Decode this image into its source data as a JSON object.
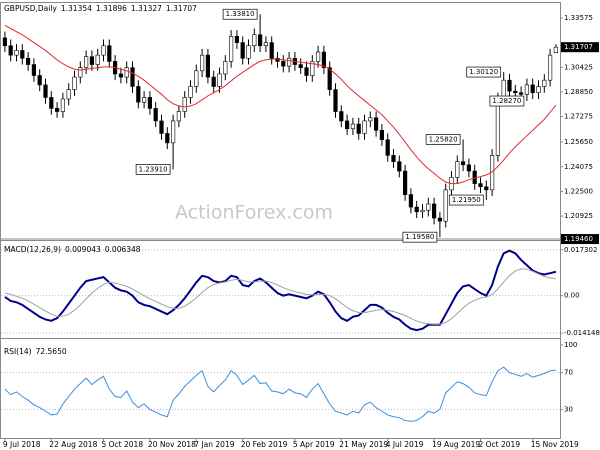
{
  "chart_data": [
    {
      "type": "candlestick",
      "title": "GBPUSD,Daily",
      "watermark": "ActionForex.com",
      "color": "#000000",
      "open": [
        1.323,
        1.318,
        1.312,
        1.315,
        1.31,
        1.306,
        1.299,
        1.293,
        1.285,
        1.278,
        1.276,
        1.284,
        1.29,
        1.298,
        1.304,
        1.311,
        1.306,
        1.312,
        1.318,
        1.308,
        1.3,
        1.298,
        1.304,
        1.292,
        1.282,
        1.285,
        1.278,
        1.27,
        1.262,
        1.256,
        1.27,
        1.276,
        1.285,
        1.292,
        1.302,
        1.312,
        1.298,
        1.292,
        1.3,
        1.308,
        1.324,
        1.32,
        1.31,
        1.318,
        1.325,
        1.318,
        1.32,
        1.31,
        1.308,
        1.305,
        1.31,
        1.306,
        1.304,
        1.299,
        1.308,
        1.314,
        1.304,
        1.29,
        1.276,
        1.27,
        1.265,
        1.268,
        1.262,
        1.27,
        1.272,
        1.264,
        1.258,
        1.248,
        1.244,
        1.238,
        1.223,
        1.215,
        1.212,
        1.213,
        1.217,
        1.208,
        1.206,
        1.226,
        1.234,
        1.244,
        1.242,
        1.238,
        1.23,
        1.228,
        1.226,
        1.248,
        1.284,
        1.296,
        1.289,
        1.288,
        1.287,
        1.293,
        1.288,
        1.292,
        1.296,
        1.31354
      ],
      "high": [
        1.327,
        1.322,
        1.319,
        1.319,
        1.314,
        1.31,
        1.303,
        1.297,
        1.289,
        1.282,
        1.288,
        1.294,
        1.302,
        1.308,
        1.315,
        1.315,
        1.316,
        1.322,
        1.322,
        1.312,
        1.304,
        1.308,
        1.308,
        1.296,
        1.289,
        1.289,
        1.282,
        1.274,
        1.266,
        1.274,
        1.28,
        1.289,
        1.296,
        1.306,
        1.316,
        1.316,
        1.302,
        1.304,
        1.312,
        1.328,
        1.328,
        1.324,
        1.322,
        1.329,
        1.3381,
        1.324,
        1.324,
        1.314,
        1.312,
        1.314,
        1.314,
        1.31,
        1.308,
        1.312,
        1.318,
        1.318,
        1.308,
        1.294,
        1.28,
        1.274,
        1.272,
        1.272,
        1.274,
        1.276,
        1.276,
        1.268,
        1.262,
        1.252,
        1.248,
        1.242,
        1.227,
        1.219,
        1.217,
        1.221,
        1.221,
        1.212,
        1.23,
        1.238,
        1.248,
        1.2582,
        1.246,
        1.242,
        1.234,
        1.232,
        1.252,
        1.288,
        1.3012,
        1.3,
        1.293,
        1.292,
        1.297,
        1.297,
        1.296,
        1.3,
        1.316,
        1.31896
      ],
      "low": [
        1.314,
        1.308,
        1.308,
        1.306,
        1.302,
        1.295,
        1.289,
        1.281,
        1.274,
        1.272,
        1.272,
        1.28,
        1.286,
        1.294,
        1.3,
        1.302,
        1.302,
        1.308,
        1.304,
        1.296,
        1.294,
        1.294,
        1.288,
        1.278,
        1.278,
        1.274,
        1.266,
        1.258,
        1.252,
        1.2391,
        1.266,
        1.272,
        1.281,
        1.288,
        1.298,
        1.294,
        1.288,
        1.288,
        1.296,
        1.304,
        1.316,
        1.306,
        1.306,
        1.314,
        1.314,
        1.314,
        1.306,
        1.304,
        1.301,
        1.301,
        1.302,
        1.3,
        1.295,
        1.295,
        1.304,
        1.3,
        1.286,
        1.272,
        1.266,
        1.261,
        1.261,
        1.258,
        1.258,
        1.266,
        1.26,
        1.254,
        1.244,
        1.24,
        1.234,
        1.219,
        1.211,
        1.208,
        1.208,
        1.209,
        1.204,
        1.1958,
        1.202,
        1.222,
        1.23,
        1.238,
        1.234,
        1.226,
        1.224,
        1.2195,
        1.222,
        1.244,
        1.28,
        1.285,
        1.284,
        1.284,
        1.2827,
        1.284,
        1.284,
        1.288,
        1.292,
        1.31327
      ],
      "close": [
        1.318,
        1.312,
        1.315,
        1.31,
        1.306,
        1.299,
        1.293,
        1.285,
        1.278,
        1.276,
        1.284,
        1.29,
        1.298,
        1.304,
        1.311,
        1.306,
        1.312,
        1.318,
        1.308,
        1.3,
        1.298,
        1.304,
        1.292,
        1.282,
        1.285,
        1.278,
        1.27,
        1.262,
        1.256,
        1.27,
        1.276,
        1.285,
        1.292,
        1.302,
        1.312,
        1.298,
        1.292,
        1.3,
        1.308,
        1.324,
        1.32,
        1.31,
        1.318,
        1.325,
        1.318,
        1.32,
        1.31,
        1.308,
        1.305,
        1.31,
        1.306,
        1.304,
        1.299,
        1.308,
        1.314,
        1.304,
        1.29,
        1.276,
        1.27,
        1.265,
        1.268,
        1.262,
        1.27,
        1.272,
        1.264,
        1.258,
        1.248,
        1.244,
        1.238,
        1.223,
        1.215,
        1.212,
        1.213,
        1.217,
        1.208,
        1.206,
        1.226,
        1.234,
        1.244,
        1.242,
        1.238,
        1.23,
        1.228,
        1.226,
        1.248,
        1.284,
        1.296,
        1.289,
        1.288,
        1.287,
        1.293,
        1.288,
        1.292,
        1.296,
        1.312,
        1.31707
      ],
      "ma": {
        "color": "#e8262b",
        "values": [
          1.331,
          1.329,
          1.327,
          1.325,
          1.3225,
          1.32,
          1.3175,
          1.315,
          1.312,
          1.309,
          1.3065,
          1.3045,
          1.303,
          1.3025,
          1.303,
          1.3035,
          1.304,
          1.3045,
          1.3045,
          1.304,
          1.303,
          1.302,
          1.3005,
          1.2985,
          1.296,
          1.293,
          1.29,
          1.287,
          1.2835,
          1.281,
          1.2795,
          1.279,
          1.2795,
          1.281,
          1.2835,
          1.286,
          1.288,
          1.29,
          1.2925,
          1.2955,
          1.2985,
          1.301,
          1.3035,
          1.306,
          1.308,
          1.309,
          1.3095,
          1.3095,
          1.309,
          1.3085,
          1.308,
          1.3075,
          1.307,
          1.3065,
          1.306,
          1.305,
          1.303,
          1.3,
          1.2965,
          1.2925,
          1.289,
          1.286,
          1.283,
          1.28,
          1.277,
          1.274,
          1.27,
          1.266,
          1.2615,
          1.2565,
          1.2515,
          1.247,
          1.243,
          1.2395,
          1.2365,
          1.2335,
          1.231,
          1.23,
          1.23,
          1.231,
          1.2325,
          1.2335,
          1.2345,
          1.2355,
          1.2375,
          1.241,
          1.245,
          1.2495,
          1.2535,
          1.257,
          1.2605,
          1.264,
          1.2675,
          1.271,
          1.2755,
          1.28
        ]
      },
      "ylim": [
        1.194,
        1.344
      ],
      "yticks": [
        1.33575,
        1.30425,
        {
          "value": 1.2885,
          "label": "1.28850"
        },
        1.27275,
        {
          "value": 1.2565,
          "label": "1.25650"
        },
        1.24075,
        {
          "value": 1.225,
          "label": "1.22500"
        },
        1.20925
      ],
      "hline": {
        "value": 1.1946,
        "label": "1.19460"
      },
      "annotations": [
        {
          "value": 1.3381,
          "label": "1.33810"
        },
        {
          "value": 1.2391,
          "label": "1.23910"
        },
        {
          "value": 1.3012,
          "label": "1.30120"
        },
        {
          "value": 1.2827,
          "label": "1.28270"
        },
        {
          "value": 1.2582,
          "label": "1.25820"
        },
        {
          "value": 1.2195,
          "label": "1.21950"
        },
        {
          "value": 1.1958,
          "label": "1.19580"
        }
      ]
    },
    {
      "type": "line",
      "title": "MACD(12,26,9)",
      "series": [
        {
          "color": "#00008b",
          "values": [
            -0.0005,
            -0.002,
            -0.0025,
            -0.0035,
            -0.005,
            -0.0065,
            -0.008,
            -0.009,
            -0.0095,
            -0.0085,
            -0.006,
            -0.003,
            0.0,
            0.003,
            0.0055,
            0.006,
            0.0065,
            0.007,
            0.005,
            0.003,
            0.002,
            0.0015,
            0.0,
            -0.0025,
            -0.0035,
            -0.004,
            -0.005,
            -0.006,
            -0.007,
            -0.0055,
            -0.0035,
            -0.001,
            0.002,
            0.005,
            0.0075,
            0.007,
            0.0055,
            0.005,
            0.0055,
            0.0075,
            0.007,
            0.004,
            0.0035,
            0.0055,
            0.0065,
            0.005,
            0.003,
            0.001,
            0.0,
            0.0005,
            0.0,
            -0.0005,
            -0.001,
            0.0,
            0.0015,
            0.0005,
            -0.0025,
            -0.006,
            -0.0085,
            -0.0095,
            -0.008,
            -0.0075,
            -0.0055,
            -0.0035,
            -0.0035,
            -0.0045,
            -0.0065,
            -0.008,
            -0.009,
            -0.011,
            -0.0125,
            -0.013,
            -0.0125,
            -0.011,
            -0.011,
            -0.011,
            -0.007,
            -0.003,
            0.001,
            0.0035,
            0.004,
            0.0025,
            0.001,
            0.0,
            0.004,
            0.011,
            0.016,
            0.017,
            0.016,
            0.0135,
            0.0115,
            0.0095,
            0.0085,
            0.008,
            0.0085,
            0.009043
          ]
        },
        {
          "color": "#a0a0a0",
          "values": [
            0.001,
            0.0005,
            -0.0002,
            -0.001,
            -0.002,
            -0.0032,
            -0.0045,
            -0.0058,
            -0.007,
            -0.0078,
            -0.0078,
            -0.007,
            -0.0055,
            -0.0035,
            -0.0012,
            0.001,
            0.0028,
            0.0042,
            0.005,
            0.0048,
            0.0042,
            0.0035,
            0.0025,
            0.0012,
            0.0,
            -0.0012,
            -0.0022,
            -0.0032,
            -0.0042,
            -0.0048,
            -0.0048,
            -0.004,
            -0.0026,
            -0.0008,
            0.0012,
            0.003,
            0.0042,
            0.0048,
            0.0052,
            0.0058,
            0.0062,
            0.0058,
            0.0052,
            0.0052,
            0.0055,
            0.0055,
            0.005,
            0.004,
            0.003,
            0.0022,
            0.0015,
            0.001,
            0.0005,
            0.0003,
            0.0005,
            0.0005,
            0.0,
            -0.0012,
            -0.0028,
            -0.0045,
            -0.0057,
            -0.0064,
            -0.0064,
            -0.006,
            -0.0055,
            -0.0053,
            -0.0055,
            -0.006,
            -0.0067,
            -0.0075,
            -0.0086,
            -0.0096,
            -0.0103,
            -0.0106,
            -0.0108,
            -0.0108,
            -0.0101,
            -0.0087,
            -0.0067,
            -0.0046,
            -0.0029,
            -0.0017,
            -0.0009,
            -0.0005,
            0.0004,
            0.0025,
            0.0052,
            0.0076,
            0.0093,
            0.0101,
            0.01,
            0.0092,
            0.0082,
            0.0073,
            0.0067,
            0.006348
          ]
        }
      ],
      "ylim": [
        -0.016,
        0.0199
      ],
      "yticks": [
        0.017302,
        {
          "value": 0,
          "label": "0.00"
        },
        -0.014148
      ]
    },
    {
      "type": "line",
      "title": "RSI(14)",
      "last": {
        "value": 72.565,
        "label": "72.5650"
      },
      "series": [
        {
          "color": "#3c8ee0",
          "values": [
            52,
            46,
            49,
            44,
            40,
            35,
            32,
            28,
            24,
            25,
            36,
            44,
            52,
            58,
            64,
            57,
            62,
            66,
            52,
            44,
            43,
            50,
            38,
            32,
            36,
            30,
            27,
            24,
            22,
            40,
            47,
            55,
            61,
            67,
            72,
            55,
            49,
            56,
            62,
            72,
            67,
            57,
            62,
            67,
            58,
            59,
            50,
            49,
            47,
            52,
            48,
            47,
            43,
            52,
            58,
            47,
            36,
            28,
            26,
            24,
            28,
            26,
            35,
            38,
            32,
            28,
            24,
            22,
            21,
            18,
            17,
            18,
            22,
            28,
            26,
            30,
            48,
            54,
            60,
            58,
            54,
            48,
            46,
            45,
            60,
            72,
            76,
            70,
            68,
            66,
            69,
            65,
            67,
            69,
            72,
            72.565
          ]
        }
      ],
      "ylim": [
        0,
        100
      ],
      "yticks": [
        100,
        70,
        30
      ],
      "categories": [
        "9 Jul 2018",
        null,
        null,
        null,
        null,
        null,
        null,
        null,
        "22 Aug 2018",
        null,
        null,
        null,
        null,
        null,
        null,
        null,
        null,
        "5 Oct 2018",
        null,
        null,
        null,
        null,
        null,
        null,
        null,
        "20 Nov 2018",
        null,
        null,
        null,
        null,
        null,
        null,
        null,
        "7 Jan 2019",
        null,
        null,
        null,
        null,
        null,
        null,
        null,
        "20 Feb 2019",
        null,
        null,
        null,
        null,
        null,
        null,
        null,
        null,
        "5 Apr 2019",
        null,
        null,
        null,
        null,
        null,
        null,
        null,
        "21 May 2019",
        null,
        null,
        null,
        null,
        null,
        null,
        null,
        "4 Jul 2019",
        null,
        null,
        null,
        null,
        null,
        null,
        null,
        "19 Aug 2019",
        null,
        null,
        null,
        null,
        null,
        null,
        null,
        "2 Oct 2019",
        null,
        null,
        null,
        null,
        null,
        null,
        null,
        null,
        "15 Nov 2019",
        null,
        null,
        null,
        null
      ]
    }
  ]
}
